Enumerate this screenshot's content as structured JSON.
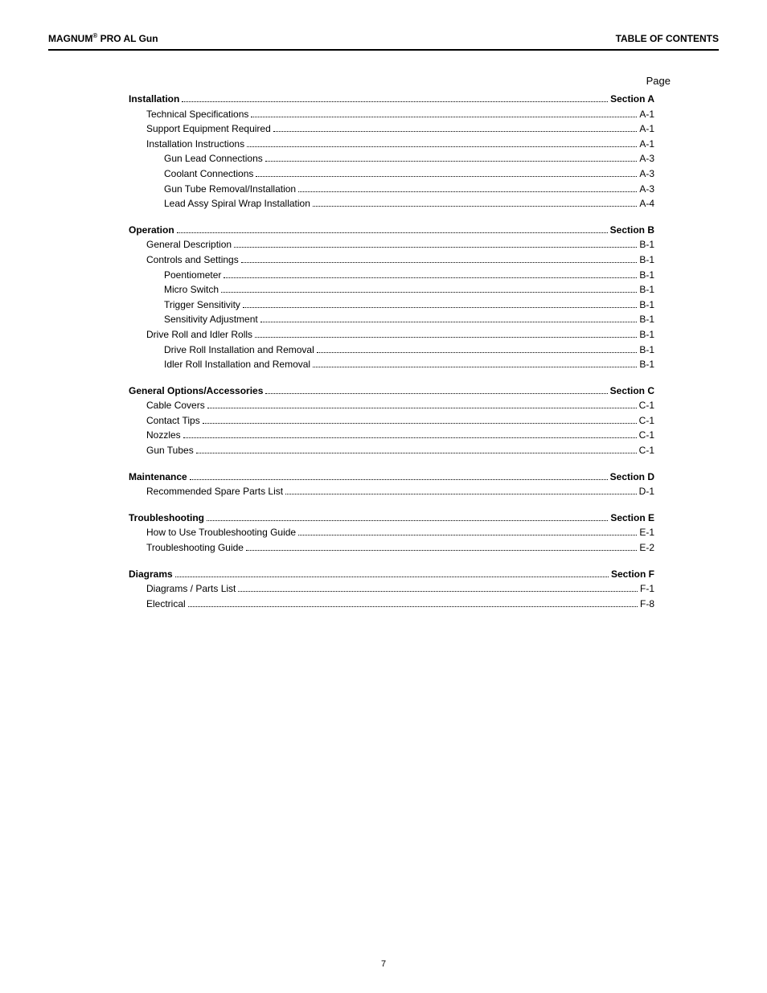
{
  "header": {
    "product_prefix": "MAGNUM",
    "product_suffix": " PRO AL Gun",
    "reg_mark": "®",
    "right": "TABLE OF CONTENTS"
  },
  "page_label": "Page",
  "footer_page": "7",
  "colors": {
    "text": "#000000",
    "background": "#ffffff",
    "rule": "#000000"
  },
  "typography": {
    "base_fontsize": 12,
    "header_fontsize": 12,
    "line_height": 1.55
  },
  "sections": [
    {
      "title": "Installation",
      "page": "Section A",
      "entries": [
        {
          "indent": 1,
          "label": "Technical Specifications",
          "page": "A-1"
        },
        {
          "indent": 1,
          "label": "Support Equipment Required",
          "page": "A-1"
        },
        {
          "indent": 1,
          "label": "Installation Instructions",
          "page": "A-1"
        },
        {
          "indent": 2,
          "label": "Gun Lead Connections",
          "page": "A-3"
        },
        {
          "indent": 2,
          "label": "Coolant Connections",
          "page": "A-3"
        },
        {
          "indent": 2,
          "label": "Gun Tube Removal/Installation",
          "page": "A-3"
        },
        {
          "indent": 2,
          "label": "Lead Assy Spiral Wrap Installation",
          "page": "A-4"
        }
      ]
    },
    {
      "title": "Operation",
      "page": "Section B",
      "entries": [
        {
          "indent": 1,
          "label": "General Description",
          "page": "B-1"
        },
        {
          "indent": 1,
          "label": "Controls and Settings",
          "page": "B-1"
        },
        {
          "indent": 2,
          "label": "Poentiometer",
          "page": "B-1"
        },
        {
          "indent": 2,
          "label": "Micro Switch",
          "page": "B-1"
        },
        {
          "indent": 2,
          "label": "Trigger Sensitivity",
          "page": "B-1"
        },
        {
          "indent": 2,
          "label": "Sensitivity Adjustment",
          "page": "B-1"
        },
        {
          "indent": 1,
          "label": "Drive Roll and Idler Rolls",
          "page": "B-1"
        },
        {
          "indent": 2,
          "label": "Drive Roll Installation and Removal",
          "page": "B-1"
        },
        {
          "indent": 2,
          "label": "Idler Roll Installation and Removal",
          "page": "B-1"
        }
      ]
    },
    {
      "title": "General Options/Accessories",
      "page": "Section C",
      "entries": [
        {
          "indent": 1,
          "label": "Cable Covers",
          "page": "C-1"
        },
        {
          "indent": 1,
          "label": "Contact Tips",
          "page": "C-1"
        },
        {
          "indent": 1,
          "label": "Nozzles",
          "page": "C-1"
        },
        {
          "indent": 1,
          "label": "Gun Tubes",
          "page": "C-1"
        }
      ]
    },
    {
      "title": "Maintenance",
      "page": "Section D",
      "entries": [
        {
          "indent": 1,
          "label": "Recommended Spare Parts List",
          "page": "D-1"
        }
      ]
    },
    {
      "title": "Troubleshooting",
      "page": "Section E",
      "entries": [
        {
          "indent": 1,
          "label": "How to Use Troubleshooting Guide",
          "page": "E-1"
        },
        {
          "indent": 1,
          "label": "Troubleshooting Guide",
          "page": "E-2"
        }
      ]
    },
    {
      "title": "Diagrams",
      "page": "Section F",
      "entries": [
        {
          "indent": 1,
          "label": "Diagrams / Parts List",
          "page": "F-1"
        },
        {
          "indent": 1,
          "label": "Electrical",
          "page": "F-8"
        }
      ]
    }
  ]
}
